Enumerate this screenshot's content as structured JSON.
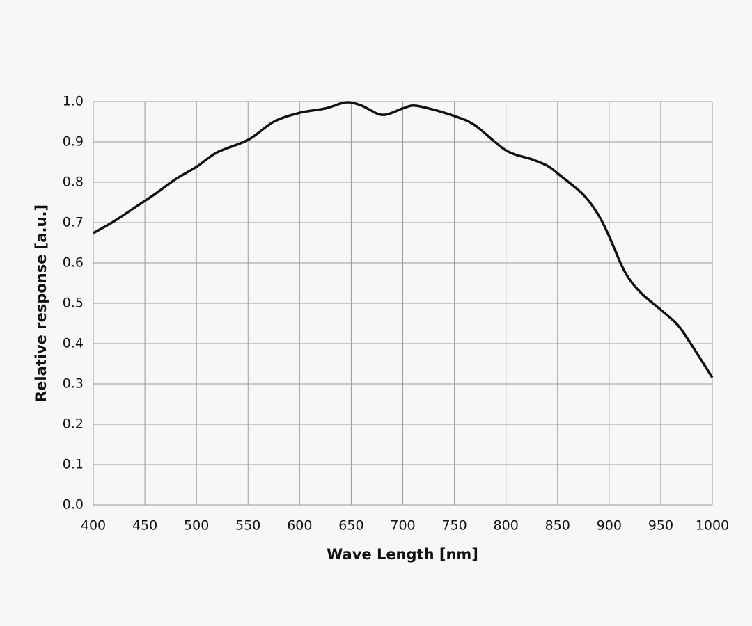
{
  "chart_data": {
    "type": "line",
    "x_label": "Wave Length [nm]",
    "y_label": "Relative response [a.u.]",
    "x": [
      400,
      420,
      440,
      460,
      480,
      500,
      520,
      550,
      575,
      600,
      625,
      645,
      660,
      680,
      700,
      710,
      725,
      750,
      770,
      800,
      825,
      840,
      850,
      875,
      890,
      900,
      915,
      930,
      950,
      965,
      975,
      1000
    ],
    "series": [
      {
        "color": "#111111",
        "values": [
          0.674,
          0.703,
          0.737,
          0.771,
          0.808,
          0.838,
          0.874,
          0.905,
          0.95,
          0.972,
          0.983,
          0.998,
          0.99,
          0.967,
          0.983,
          0.99,
          0.983,
          0.964,
          0.941,
          0.879,
          0.857,
          0.841,
          0.822,
          0.769,
          0.717,
          0.666,
          0.579,
          0.528,
          0.484,
          0.45,
          0.416,
          0.316
        ]
      }
    ],
    "xlim": [
      400,
      1000
    ],
    "xticks": [
      400,
      450,
      500,
      550,
      600,
      650,
      700,
      750,
      800,
      850,
      900,
      950,
      1000
    ],
    "ylim": [
      0,
      1
    ],
    "yticks": [
      {
        "value": 0,
        "label": "0.0"
      },
      0.1,
      0.2,
      0.3,
      0.4,
      0.5,
      0.6,
      0.7,
      0.8,
      0.9,
      {
        "value": 1,
        "label": "1.0"
      }
    ],
    "grid": true
  }
}
